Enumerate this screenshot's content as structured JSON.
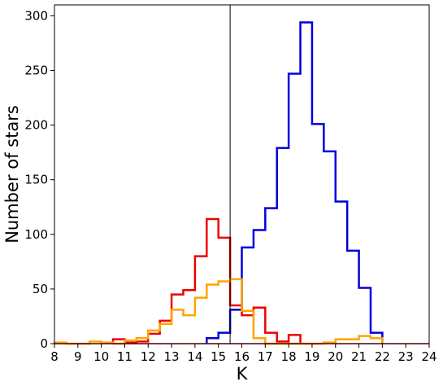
{
  "chart_data": {
    "type": "histogram",
    "xlabel": "K",
    "ylabel": "Number of stars",
    "xlim": [
      8,
      24
    ],
    "ylim": [
      0,
      310
    ],
    "bin_width": 0.5,
    "x_ticks": [
      8,
      9,
      10,
      11,
      12,
      13,
      14,
      15,
      16,
      17,
      18,
      19,
      20,
      21,
      22,
      23,
      24
    ],
    "y_ticks": [
      0,
      50,
      100,
      150,
      200,
      250,
      300
    ],
    "grid": false,
    "legend": "none",
    "vertical_line_x": 15.5,
    "series": [
      {
        "color": "#0000dd",
        "bin_edges": [
          14.5,
          15.0,
          15.5,
          16.0,
          16.5,
          17.0,
          17.5,
          18.0,
          18.5,
          19.0,
          19.5,
          20.0,
          20.5,
          21.0,
          21.5,
          22.0
        ],
        "counts": [
          5,
          10,
          31,
          88,
          104,
          124,
          179,
          247,
          294,
          201,
          176,
          130,
          85,
          51,
          10
        ]
      },
      {
        "color": "#ee0000",
        "bin_edges": [
          10.5,
          11.0,
          11.5,
          12.0,
          12.5,
          13.0,
          13.5,
          14.0,
          14.5,
          15.0,
          15.5,
          16.0,
          16.5,
          17.0,
          17.5,
          18.0,
          18.5
        ],
        "counts": [
          4,
          1,
          2,
          9,
          21,
          45,
          49,
          80,
          114,
          97,
          35,
          26,
          33,
          10,
          2,
          8
        ]
      },
      {
        "color": "#ffa500",
        "bin_edges": [
          8.0,
          8.5,
          9.0,
          9.5,
          10.0,
          10.5,
          11.0,
          11.5,
          12.0,
          12.5,
          13.0,
          13.5,
          14.0,
          14.5,
          15.0,
          15.5,
          16.0,
          16.5,
          17.0,
          17.5,
          18.0,
          18.5,
          19.0,
          19.5,
          20.0,
          20.5,
          21.0,
          21.5,
          22.0
        ],
        "counts": [
          1,
          0,
          0,
          2,
          1,
          0,
          3,
          5,
          12,
          18,
          31,
          26,
          42,
          54,
          57,
          59,
          30,
          5,
          0,
          0,
          0,
          0,
          0,
          1,
          4,
          4,
          7,
          5
        ]
      }
    ]
  }
}
